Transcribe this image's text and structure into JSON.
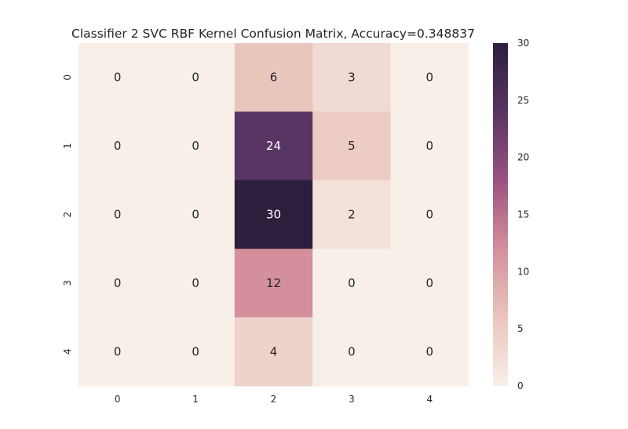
{
  "chart_data": {
    "type": "heatmap",
    "title": "Classifier 2 SVC RBF Kernel Confusion Matrix, Accuracy=0.348837",
    "xlabel": "",
    "ylabel": "",
    "x_tick_labels": [
      "0",
      "1",
      "2",
      "3",
      "4"
    ],
    "y_tick_labels": [
      "0",
      "1",
      "2",
      "3",
      "4"
    ],
    "values": [
      [
        0,
        0,
        6,
        3,
        0
      ],
      [
        0,
        0,
        24,
        5,
        0
      ],
      [
        0,
        0,
        30,
        2,
        0
      ],
      [
        0,
        0,
        12,
        0,
        0
      ],
      [
        0,
        0,
        4,
        0,
        0
      ]
    ],
    "annotations": true,
    "grid": false,
    "colorbar": {
      "vmin": 0,
      "vmax": 30,
      "ticks": [
        0,
        5,
        10,
        15,
        20,
        25,
        30
      ],
      "tick_labels": [
        "0",
        "5",
        "10",
        "15",
        "20",
        "25",
        "30"
      ],
      "placement": "right"
    },
    "colormap_stops": [
      "#f8efe9",
      "#e9c5bc",
      "#d48f9d",
      "#9b527f",
      "#583563",
      "#2d1e3e"
    ],
    "annotation_colors": {
      "light_text": "#ffffff",
      "dark_text": "#262626"
    }
  }
}
